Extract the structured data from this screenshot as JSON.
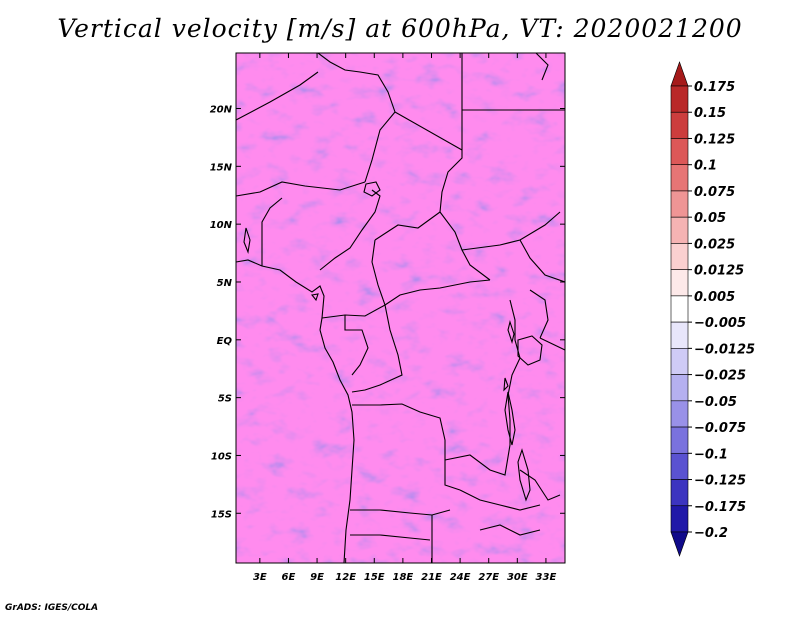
{
  "title": "Vertical velocity [m/s] at 600hPa, VT: 2020021200",
  "credit": "GrADS: IGES/COLA",
  "colors": {
    "map_frame": "#000000",
    "border": "#000000",
    "background": "#ffffff"
  },
  "chart_data": {
    "type": "heatmap",
    "title": "Vertical velocity [m/s] at 600hPa, VT: 2020021200",
    "xlabel": "",
    "ylabel": "",
    "x_ticks": [
      "3E",
      "6E",
      "9E",
      "12E",
      "15E",
      "18E",
      "21E",
      "24E",
      "27E",
      "30E",
      "33E"
    ],
    "x_tick_values": [
      3,
      6,
      9,
      12,
      15,
      18,
      21,
      24,
      27,
      30,
      33
    ],
    "y_ticks": [
      "20N",
      "15N",
      "10N",
      "5N",
      "EQ",
      "5S",
      "10S",
      "15S"
    ],
    "y_tick_values": [
      20,
      15,
      10,
      5,
      0,
      -5,
      -10,
      -15
    ],
    "xlim": [
      0.5,
      35
    ],
    "ylim": [
      -19.3,
      24.8
    ],
    "colorbar_levels": [
      "0.175",
      "0.15",
      "0.125",
      "0.1",
      "0.075",
      "0.05",
      "0.025",
      "0.0125",
      "0.005",
      "−0.005",
      "−0.0125",
      "−0.025",
      "−0.05",
      "−0.075",
      "−0.1",
      "−0.125",
      "−0.175",
      "−0.2"
    ],
    "colorbar_colors": [
      "#a51a1a",
      "#b92828",
      "#cc3d3d",
      "#dc5858",
      "#e77575",
      "#ef9595",
      "#f5b3b3",
      "#fad0d0",
      "#fde9e9",
      "#ffffff",
      "#e8e6fb",
      "#cfcbf6",
      "#b5b0f0",
      "#9991e8",
      "#7a72de",
      "#5a52d1",
      "#3c34c0",
      "#2018a8",
      "#100a8a"
    ]
  }
}
